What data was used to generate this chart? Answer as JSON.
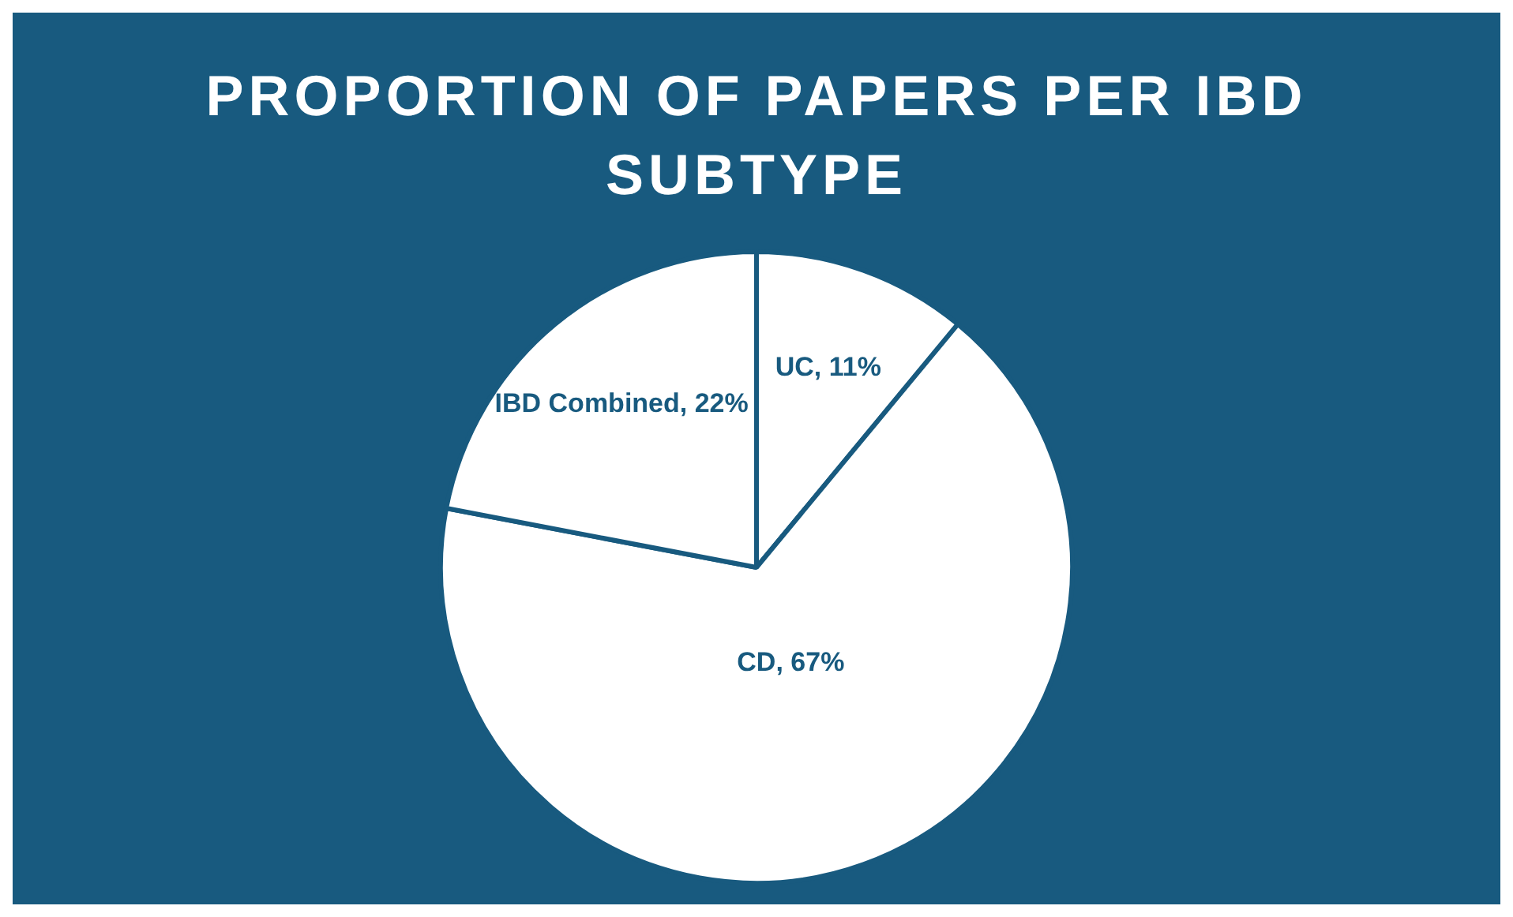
{
  "chart_data": {
    "type": "pie",
    "title": "PROPORTION OF PAPERS PER IBD SUBTYPE",
    "categories": [
      "UC",
      "CD",
      "IBD Combined"
    ],
    "values": [
      11,
      67,
      22
    ],
    "value_labels": [
      "11%",
      "67%",
      "22%"
    ],
    "colors": [
      "#ffffff",
      "#ffffff",
      "#ffffff"
    ],
    "legend": false
  }
}
